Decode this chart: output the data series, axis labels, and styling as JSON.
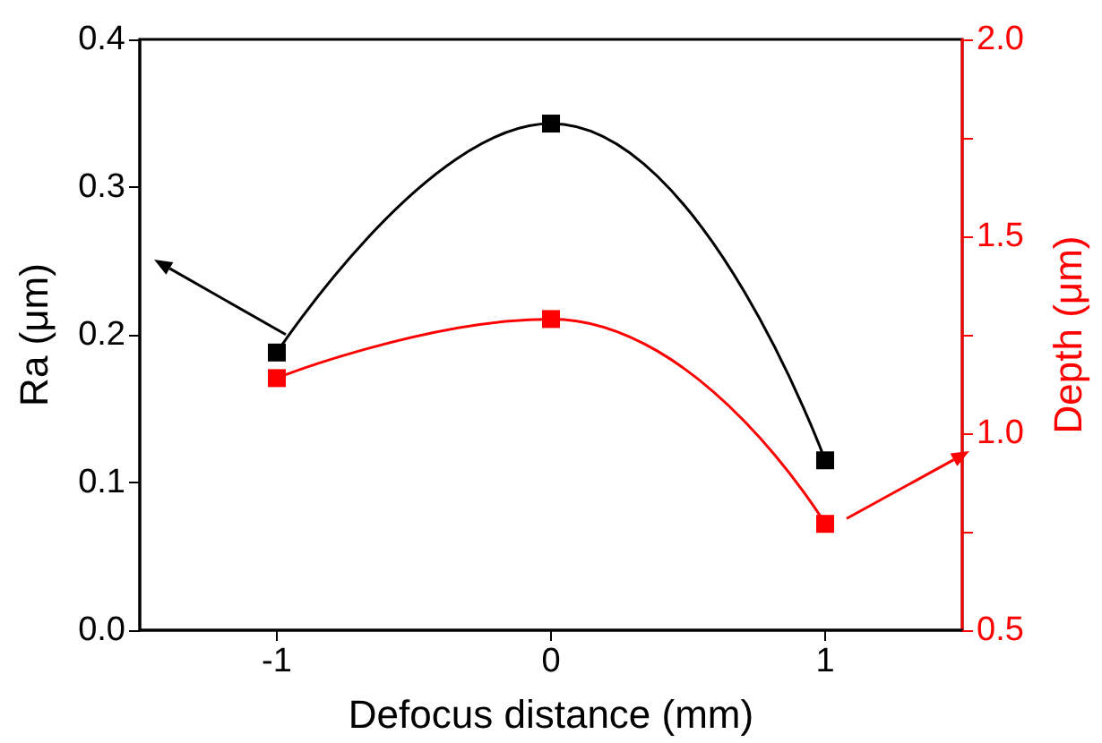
{
  "chart_data": {
    "type": "line",
    "xlabel": "Defocus distance (mm)",
    "ylabel": "Ra (μm)",
    "y2label": "Depth (μm)",
    "x": [
      -1,
      0,
      1
    ],
    "series": [
      {
        "color": "#000000",
        "values": [
          0.188,
          0.343,
          0.115
        ]
      },
      {
        "color": "#ff0000",
        "values": [
          1.14,
          1.29,
          0.77
        ],
        "axis": "y2"
      }
    ],
    "xlim": [
      -1.5,
      1.5
    ],
    "xticks": [
      -1,
      0,
      1
    ],
    "ylim": [
      0,
      0.4
    ],
    "yticks": [
      {
        "value": 0,
        "label": "0.0"
      },
      0.1,
      0.2,
      0.3,
      0.4
    ],
    "y2lim": [
      0.5,
      2.0
    ],
    "y2ticks": [
      {
        "value": 0.5,
        "label": "0.5"
      },
      {
        "value": 0.75,
        "label": null
      },
      {
        "value": 1.0,
        "label": "1.0"
      },
      {
        "value": 1.25,
        "label": null
      },
      {
        "value": 1.5,
        "label": "1.5"
      },
      {
        "value": 1.75,
        "label": null
      },
      {
        "value": 2.0,
        "label": "2.0"
      }
    ],
    "marker": "square",
    "line_style": "solid",
    "grid": false
  }
}
